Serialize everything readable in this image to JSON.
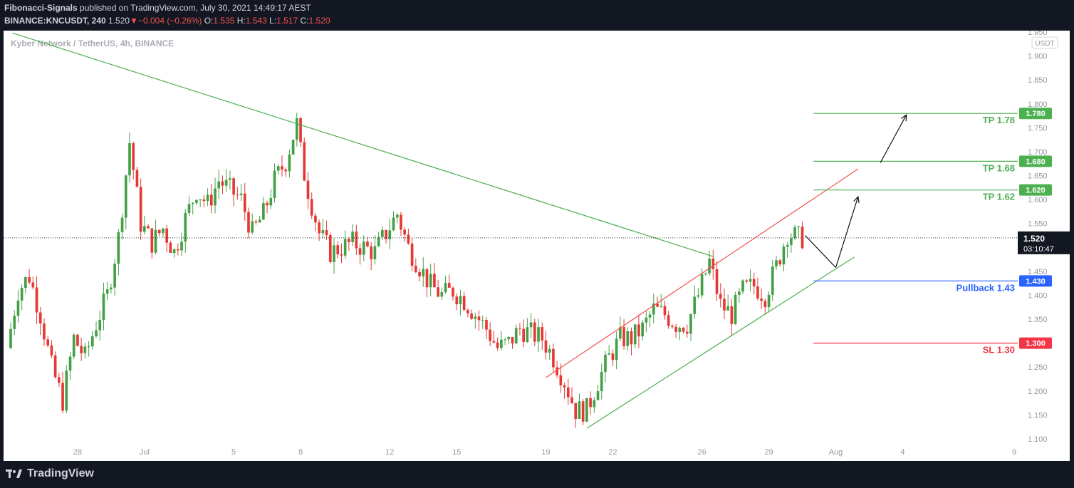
{
  "header": {
    "author": "Fibonacci-Signals",
    "published_text": " published on TradingView.com, July 30, 2021 14:49:17 AEST",
    "symbol": "BINANCE:KNCUSDT, 240",
    "last": "1.520",
    "change": "−0.004 (−0.26%)",
    "o_label": "O:",
    "o_val": "1.535",
    "h_label": "H:",
    "h_val": "1.543",
    "l_label": "L:",
    "l_val": "1.517",
    "c_label": "C:",
    "c_val": "1.520"
  },
  "footer": {
    "brand": "TradingView"
  },
  "chart_data": {
    "type": "candlestick",
    "title": "Kyber Network / TetherUS, 4h, BINANCE",
    "currency_label": "USDT",
    "y_range": [
      1.1,
      1.95
    ],
    "y_ticks": [
      "1.950",
      "1.900",
      "1.850",
      "1.800",
      "1.750",
      "1.700",
      "1.650",
      "1.600",
      "1.550",
      "1.450",
      "1.400",
      "1.350",
      "1.250",
      "1.200",
      "1.150",
      "1.100"
    ],
    "x_range": [
      "2021-06-25",
      "2021-08-09"
    ],
    "x_ticks": [
      {
        "label": "28",
        "date": "2021-06-28"
      },
      {
        "label": "Jul",
        "date": "2021-07-01"
      },
      {
        "label": "5",
        "date": "2021-07-05"
      },
      {
        "label": "8",
        "date": "2021-07-08"
      },
      {
        "label": "12",
        "date": "2021-07-12"
      },
      {
        "label": "15",
        "date": "2021-07-15"
      },
      {
        "label": "19",
        "date": "2021-07-19"
      },
      {
        "label": "22",
        "date": "2021-07-22"
      },
      {
        "label": "26",
        "date": "2021-07-26"
      },
      {
        "label": "29",
        "date": "2021-07-29"
      },
      {
        "label": "Aug",
        "date": "2021-08-01"
      },
      {
        "label": "4",
        "date": "2021-08-04"
      },
      {
        "label": "9",
        "date": "2021-08-09"
      }
    ],
    "price_path": [
      [
        "2021-06-25 00:00",
        1.29
      ],
      [
        "2021-06-25 12:00",
        1.41
      ],
      [
        "2021-06-26 00:00",
        1.44
      ],
      [
        "2021-06-26 12:00",
        1.36
      ],
      [
        "2021-06-27 00:00",
        1.25
      ],
      [
        "2021-06-27 12:00",
        1.18
      ],
      [
        "2021-06-28 00:00",
        1.31
      ],
      [
        "2021-06-28 12:00",
        1.27
      ],
      [
        "2021-06-29 00:00",
        1.34
      ],
      [
        "2021-06-29 12:00",
        1.4
      ],
      [
        "2021-06-30 00:00",
        1.52
      ],
      [
        "2021-06-30 12:00",
        1.72
      ],
      [
        "2021-07-01 00:00",
        1.55
      ],
      [
        "2021-07-01 12:00",
        1.51
      ],
      [
        "2021-07-02 00:00",
        1.54
      ],
      [
        "2021-07-02 12:00",
        1.49
      ],
      [
        "2021-07-03 00:00",
        1.56
      ],
      [
        "2021-07-03 12:00",
        1.62
      ],
      [
        "2021-07-04 00:00",
        1.59
      ],
      [
        "2021-07-04 12:00",
        1.64
      ],
      [
        "2021-07-05 00:00",
        1.62
      ],
      [
        "2021-07-05 12:00",
        1.6
      ],
      [
        "2021-07-06 00:00",
        1.53
      ],
      [
        "2021-07-06 12:00",
        1.57
      ],
      [
        "2021-07-07 00:00",
        1.64
      ],
      [
        "2021-07-07 12:00",
        1.68
      ],
      [
        "2021-07-08 00:00",
        1.76
      ],
      [
        "2021-07-08 06:00",
        1.67
      ],
      [
        "2021-07-08 12:00",
        1.62
      ],
      [
        "2021-07-09 00:00",
        1.53
      ],
      [
        "2021-07-09 12:00",
        1.49
      ],
      [
        "2021-07-10 00:00",
        1.5
      ],
      [
        "2021-07-10 12:00",
        1.51
      ],
      [
        "2021-07-11 00:00",
        1.5
      ],
      [
        "2021-07-11 12:00",
        1.49
      ],
      [
        "2021-07-12 00:00",
        1.53
      ],
      [
        "2021-07-12 12:00",
        1.57
      ],
      [
        "2021-07-13 00:00",
        1.5
      ],
      [
        "2021-07-13 12:00",
        1.46
      ],
      [
        "2021-07-14 00:00",
        1.42
      ],
      [
        "2021-07-14 12:00",
        1.4
      ],
      [
        "2021-07-15 00:00",
        1.41
      ],
      [
        "2021-07-15 12:00",
        1.39
      ],
      [
        "2021-07-16 00:00",
        1.36
      ],
      [
        "2021-07-16 12:00",
        1.33
      ],
      [
        "2021-07-17 00:00",
        1.29
      ],
      [
        "2021-07-17 12:00",
        1.3
      ],
      [
        "2021-07-18 00:00",
        1.33
      ],
      [
        "2021-07-18 12:00",
        1.32
      ],
      [
        "2021-07-19 00:00",
        1.31
      ],
      [
        "2021-07-19 12:00",
        1.27
      ],
      [
        "2021-07-20 00:00",
        1.22
      ],
      [
        "2021-07-20 12:00",
        1.16
      ],
      [
        "2021-07-21 00:00",
        1.16
      ],
      [
        "2021-07-21 12:00",
        1.22
      ],
      [
        "2021-07-22 00:00",
        1.27
      ],
      [
        "2021-07-22 12:00",
        1.31
      ],
      [
        "2021-07-23 00:00",
        1.31
      ],
      [
        "2021-07-23 12:00",
        1.33
      ],
      [
        "2021-07-24 00:00",
        1.37
      ],
      [
        "2021-07-24 12:00",
        1.36
      ],
      [
        "2021-07-25 00:00",
        1.34
      ],
      [
        "2021-07-25 12:00",
        1.34
      ],
      [
        "2021-07-26 00:00",
        1.4
      ],
      [
        "2021-07-26 12:00",
        1.47
      ],
      [
        "2021-07-27 00:00",
        1.38
      ],
      [
        "2021-07-27 12:00",
        1.36
      ],
      [
        "2021-07-28 00:00",
        1.41
      ],
      [
        "2021-07-28 12:00",
        1.42
      ],
      [
        "2021-07-29 00:00",
        1.4
      ],
      [
        "2021-07-29 12:00",
        1.46
      ],
      [
        "2021-07-30 00:00",
        1.53
      ],
      [
        "2021-07-30 12:00",
        1.52
      ]
    ],
    "last_price": 1.52,
    "last_price_label": "1.520",
    "countdown": "03:10:47",
    "trendlines": [
      {
        "name": "descending-resistance",
        "color": "#4caf50",
        "from": [
          "2021-06-25 02:00",
          1.948
        ],
        "to": [
          "2021-07-26 12:00",
          1.481
        ]
      },
      {
        "name": "channel-upper",
        "color": "#ef5350",
        "from": [
          "2021-07-19 00:00",
          1.228
        ],
        "to": [
          "2021-08-02 00:00",
          1.664
        ]
      },
      {
        "name": "channel-lower",
        "color": "#4caf50",
        "from": [
          "2021-07-20 20:00",
          1.122
        ],
        "to": [
          "2021-08-01 20:00",
          1.48
        ]
      }
    ],
    "projection_path": [
      [
        "2021-07-30 15:00",
        1.525
      ],
      [
        "2021-08-01 00:00",
        1.458
      ],
      [
        "2021-08-02 00:00",
        1.606
      ],
      [
        "2021-08-03 00:00",
        1.677
      ],
      [
        "2021-08-04 04:00",
        1.777
      ]
    ],
    "levels": [
      {
        "name": "tp-1-78",
        "value": 1.78,
        "label": "TP 1.78",
        "axis_label": "1.780",
        "color": "#4caf50"
      },
      {
        "name": "tp-1-68",
        "value": 1.68,
        "label": "TP 1.68",
        "axis_label": "1.680",
        "color": "#4caf50"
      },
      {
        "name": "tp-1-62",
        "value": 1.62,
        "label": "TP 1.62",
        "axis_label": "1.620",
        "color": "#4caf50"
      },
      {
        "name": "pullback-1-43",
        "value": 1.43,
        "label": "Pullback 1.43",
        "axis_label": "1.430",
        "color": "#2962ff"
      },
      {
        "name": "sl-1-30",
        "value": 1.3,
        "label": "SL 1.30",
        "axis_label": "1.300",
        "color": "#f23645"
      }
    ],
    "level_line_start": "2021-07-31 00:00",
    "colors": {
      "up": "#26a69a",
      "bull": "#43a047",
      "bear": "#e53935",
      "grid": "#ffffff",
      "text": "#9598a1"
    }
  }
}
